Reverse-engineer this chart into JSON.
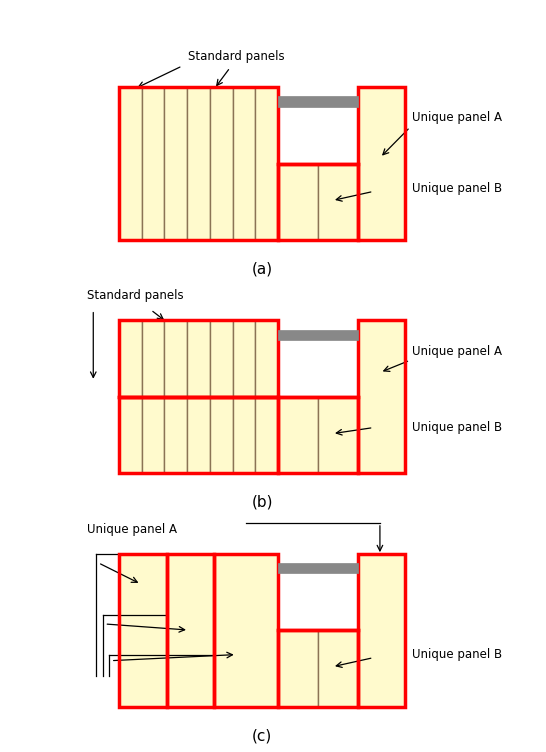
{
  "panel_fill": "#FFFACD",
  "panel_edge": "#8B7355",
  "red": "#FF0000",
  "gray_fill": "#888888",
  "white_fill": "#FFFFFF",
  "lw_red": 2.5,
  "lw_panel": 1.0,
  "label_std": "Standard panels",
  "label_ua": "Unique panel A",
  "label_ub": "Unique panel B",
  "title_a": "(a)",
  "title_b": "(b)",
  "title_c": "(c)"
}
